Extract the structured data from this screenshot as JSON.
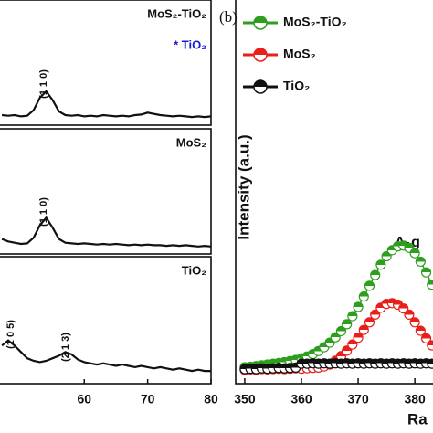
{
  "chart_data": [
    {
      "type": "line",
      "sample_label": "MoS₂-TiO₂",
      "note": "* TiO₂",
      "note_color": "#1a1ad6",
      "color": "#111111",
      "annotations": [
        "(1 1 0)"
      ],
      "x": [
        47,
        48,
        49,
        50,
        51,
        52,
        53,
        54,
        55,
        56,
        57,
        58,
        59,
        60,
        61,
        62,
        63,
        64,
        65,
        66,
        67,
        68,
        69,
        70,
        71,
        72,
        73,
        74,
        75,
        76,
        77,
        78,
        79,
        80
      ],
      "values": [
        8,
        7.5,
        8,
        7,
        7.5,
        12,
        22,
        27,
        20,
        11,
        8,
        7.5,
        8,
        7,
        7.5,
        7,
        8,
        7.5,
        7,
        7.5,
        7,
        8,
        8.5,
        10,
        9,
        8,
        7.5,
        7,
        7.5,
        7,
        6.5,
        7,
        6.5,
        7
      ],
      "xlim": [
        46.7,
        80
      ],
      "ylim": [
        0,
        100
      ]
    },
    {
      "type": "line",
      "sample_label": "MoS₂",
      "color": "#111111",
      "annotations": [
        "(1 1 0)"
      ],
      "x": [
        47,
        48,
        49,
        50,
        51,
        52,
        53,
        54,
        55,
        56,
        57,
        58,
        59,
        60,
        61,
        62,
        63,
        64,
        65,
        66,
        67,
        68,
        69,
        70,
        71,
        72,
        73,
        74,
        75,
        76,
        77,
        78,
        79,
        80
      ],
      "values": [
        12,
        10,
        9,
        8,
        8.5,
        13,
        23,
        29,
        21,
        12,
        9,
        8.5,
        8,
        8.5,
        8,
        7.5,
        8,
        7.5,
        8,
        7.5,
        7,
        7.5,
        7,
        7.5,
        7,
        7,
        6.5,
        7,
        6.5,
        7,
        6.5,
        6,
        6.5,
        6
      ],
      "xlim": [
        46.7,
        80
      ],
      "ylim": [
        0,
        100
      ]
    },
    {
      "type": "line",
      "sample_label": "TiO₂",
      "color": "#111111",
      "annotations": [
        "(1 0 5)",
        "(2 1 3)"
      ],
      "x": [
        47,
        48,
        49,
        50,
        51,
        52,
        53,
        54,
        55,
        56,
        57,
        58,
        59,
        60,
        61,
        62,
        63,
        64,
        65,
        66,
        67,
        68,
        69,
        70,
        71,
        72,
        73,
        74,
        75,
        76,
        77,
        78,
        79,
        80
      ],
      "values": [
        30,
        34,
        30,
        25,
        20,
        18,
        17,
        18,
        20,
        22,
        25,
        23,
        19,
        17,
        16,
        15,
        16,
        15,
        14,
        15,
        14,
        13,
        14,
        13,
        12,
        13,
        12,
        11,
        12,
        11,
        10,
        11,
        10,
        10
      ],
      "xlim": [
        46.7,
        80
      ],
      "ylim": [
        0,
        100
      ],
      "xticks": [
        60,
        70,
        80
      ]
    },
    {
      "type": "scatter-line",
      "panel_label": "(b)",
      "y_label": "Intensity (a.u.)",
      "x_label": "Ra",
      "annotation": "A₁g",
      "x": [
        350,
        351,
        352,
        353,
        354,
        355,
        356,
        357,
        358,
        359,
        360,
        361,
        362,
        363,
        364,
        365,
        366,
        367,
        368,
        369,
        370,
        371,
        372,
        373,
        374,
        375,
        376,
        377,
        378,
        379,
        380,
        381,
        382,
        383
      ],
      "series": [
        {
          "name": "MoS₂-TiO₂",
          "color": "#2e9e1e",
          "values": [
            4.3,
            4.4,
            4.6,
            4.8,
            5,
            5.2,
            5.4,
            5.6,
            5.9,
            6.2,
            6.6,
            7.1,
            7.7,
            8.5,
            9.5,
            10.7,
            12.1,
            13.7,
            15.5,
            17.6,
            20,
            22.7,
            25.5,
            28.3,
            31,
            33.2,
            34.8,
            35.8,
            36,
            35.4,
            34,
            31.8,
            29,
            25.8
          ]
        },
        {
          "name": "MoS₂",
          "color": "#e8201a",
          "values": [
            3.6,
            3.7,
            3.6,
            3.8,
            3.7,
            3.8,
            3.9,
            3.8,
            3.9,
            4,
            3.9,
            4,
            4.1,
            4.2,
            4.5,
            5,
            6,
            7.2,
            8.6,
            10.2,
            12,
            14,
            16,
            18,
            19.8,
            20.8,
            21,
            20.6,
            19.6,
            18,
            16,
            13.8,
            11.8,
            10
          ]
        },
        {
          "name": "TiO₂",
          "color": "#111111",
          "values": [
            3.8,
            3.9,
            3.8,
            4,
            3.9,
            4,
            4.1,
            4,
            4.1,
            4.2,
            5.2,
            5.2,
            5.3,
            5.2,
            5.3,
            5.2,
            5.3,
            5.2,
            5.3,
            5.2,
            5.3,
            5.2,
            5.3,
            5.2,
            5.3,
            5.2,
            5.3,
            5.2,
            5.3,
            5.2,
            5.3,
            5.2,
            5.3,
            5.2
          ]
        }
      ],
      "xlim": [
        348.4,
        383.2
      ],
      "ylim": [
        0,
        100
      ],
      "xticks": [
        350,
        360,
        370,
        380
      ]
    }
  ]
}
